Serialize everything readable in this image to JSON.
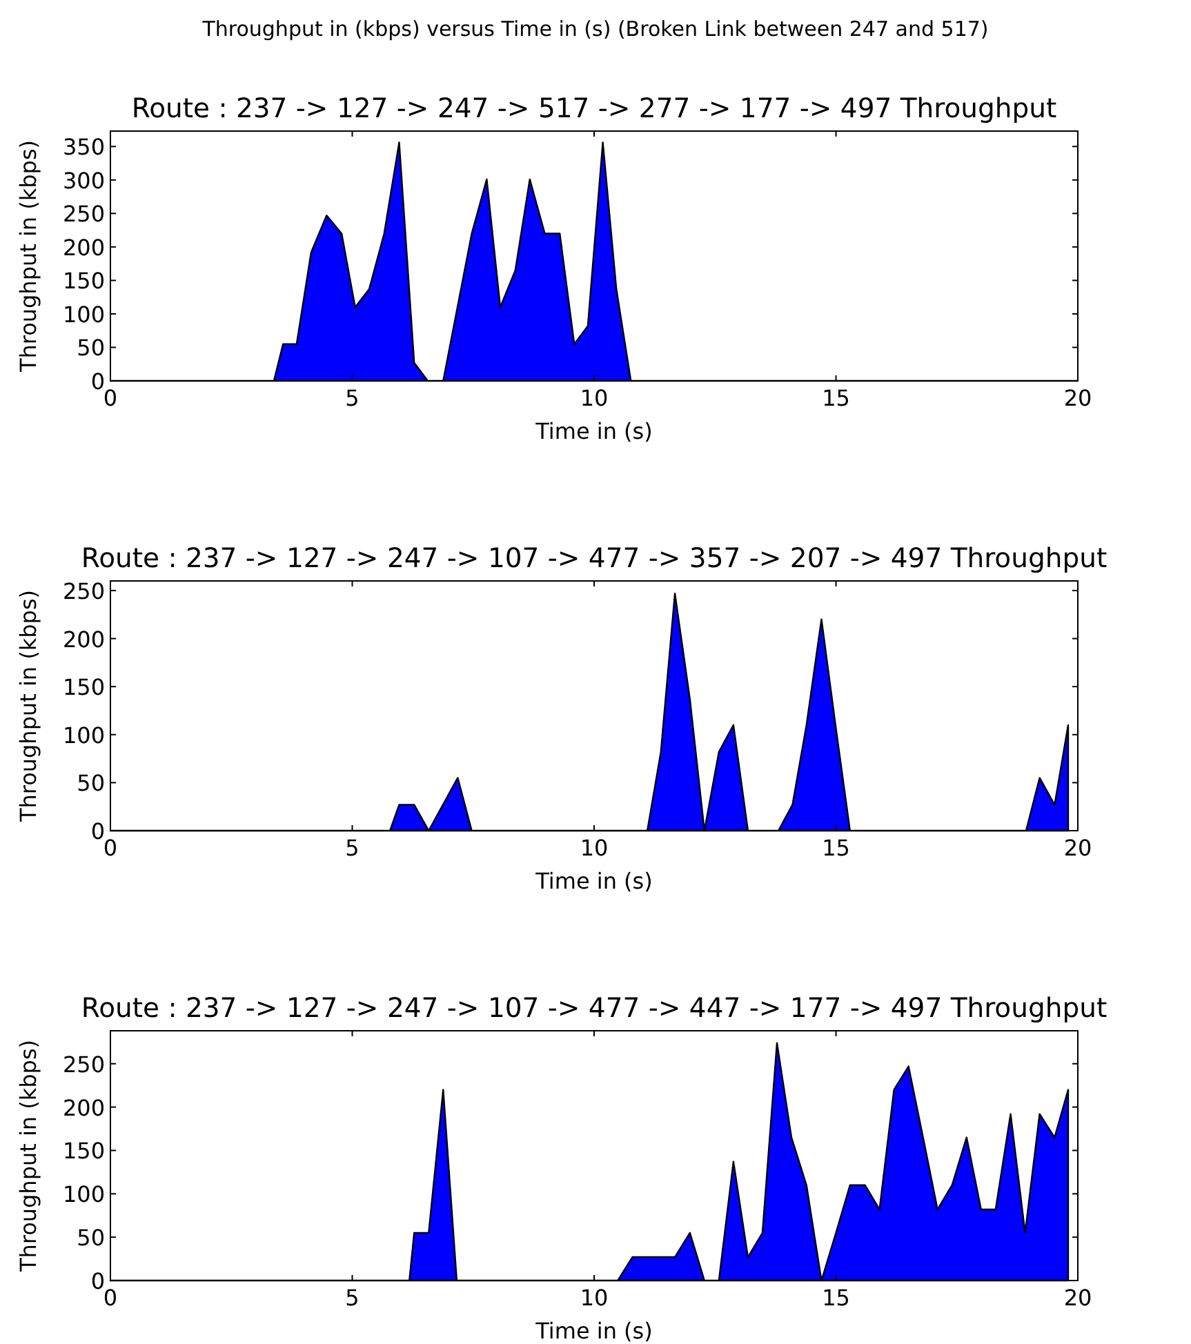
{
  "chart_data": [
    {
      "type": "area",
      "title": "Route : 237 -> 127 -> 247 -> 517 -> 277 -> 177 -> 497 Throughput",
      "xlabel": "Time in (s)",
      "ylabel": "Throughput in (kbps)",
      "annotations": [
        "Throughput in (kbps) versus Time in (s) (Broken Link between 247 and 517)"
      ],
      "xlim": [
        0,
        20
      ],
      "xticks": [
        0,
        5,
        10,
        15,
        20
      ],
      "ylim": [
        0,
        373
      ],
      "yticks": [
        0,
        50,
        100,
        150,
        200,
        250,
        300,
        350
      ],
      "grid": false,
      "series": [
        {
          "color": "#0000ff",
          "x": [
            0,
            3.38,
            3.57,
            3.85,
            4.15,
            4.47,
            4.78,
            5.06,
            5.35,
            5.66,
            5.97,
            6.28,
            6.56,
            6.88,
            7.47,
            7.78,
            8.06,
            8.37,
            8.67,
            8.98,
            9.29,
            9.59,
            9.87,
            10.18,
            10.46,
            10.76,
            20
          ],
          "values": [
            0,
            0,
            55,
            55,
            192,
            247,
            220,
            110,
            137,
            220,
            356,
            27,
            0,
            0,
            220,
            301,
            110,
            165,
            301,
            220,
            220,
            55,
            82,
            356,
            137,
            0,
            0
          ]
        }
      ]
    },
    {
      "type": "area",
      "title": "Route : 237 -> 127 -> 247 -> 107 -> 477 -> 357 -> 207 -> 497 Throughput",
      "xlabel": "Time in (s)",
      "ylabel": "Throughput in (kbps)",
      "xlim": [
        0,
        20
      ],
      "xticks": [
        0,
        5,
        10,
        15,
        20
      ],
      "ylim": [
        0,
        260
      ],
      "yticks": [
        0,
        50,
        100,
        150,
        200,
        250
      ],
      "grid": false,
      "series": [
        {
          "color": "#0000ff",
          "x": [
            0,
            5.78,
            5.97,
            6.28,
            6.58,
            7.18,
            7.47,
            11.1,
            11.38,
            11.67,
            11.98,
            12.28,
            12.58,
            12.88,
            13.18,
            13.81,
            14.1,
            14.39,
            14.7,
            14.99,
            15.29,
            18.93,
            19.21,
            19.52,
            19.8
          ],
          "values": [
            0,
            0,
            27,
            27,
            0,
            55,
            0,
            0,
            82,
            247,
            137,
            0,
            82,
            110,
            0,
            0,
            27,
            110,
            220,
            110,
            0,
            0,
            55,
            27,
            110
          ]
        }
      ]
    },
    {
      "type": "area",
      "title": "Route : 237 -> 127 -> 247 -> 107 -> 477 -> 447 -> 177 -> 497 Throughput",
      "xlabel": "Time in (s)",
      "ylabel": "Throughput in (kbps)",
      "xlim": [
        0,
        20
      ],
      "xticks": [
        0,
        5,
        10,
        15,
        20
      ],
      "ylim": [
        0,
        288
      ],
      "yticks": [
        0,
        50,
        100,
        150,
        200,
        250
      ],
      "grid": false,
      "series": [
        {
          "color": "#0000ff",
          "x": [
            0,
            6.18,
            6.28,
            6.58,
            6.88,
            7.16,
            10.49,
            10.79,
            11.1,
            11.38,
            11.67,
            11.98,
            12.28,
            12.58,
            12.88,
            13.18,
            13.48,
            13.78,
            14.08,
            14.39,
            14.7,
            15.0,
            15.29,
            15.6,
            15.9,
            16.2,
            16.5,
            16.8,
            17.1,
            17.4,
            17.7,
            18.0,
            18.3,
            18.61,
            18.91,
            19.21,
            19.52,
            19.8
          ],
          "values": [
            0,
            0,
            55,
            55,
            220,
            0,
            0,
            27,
            27,
            27,
            27,
            55,
            0,
            0,
            137,
            27,
            55,
            274,
            165,
            110,
            0,
            55,
            110,
            110,
            82,
            220,
            247,
            165,
            82,
            110,
            165,
            82,
            82,
            192,
            55,
            192,
            165,
            220
          ]
        }
      ]
    }
  ]
}
